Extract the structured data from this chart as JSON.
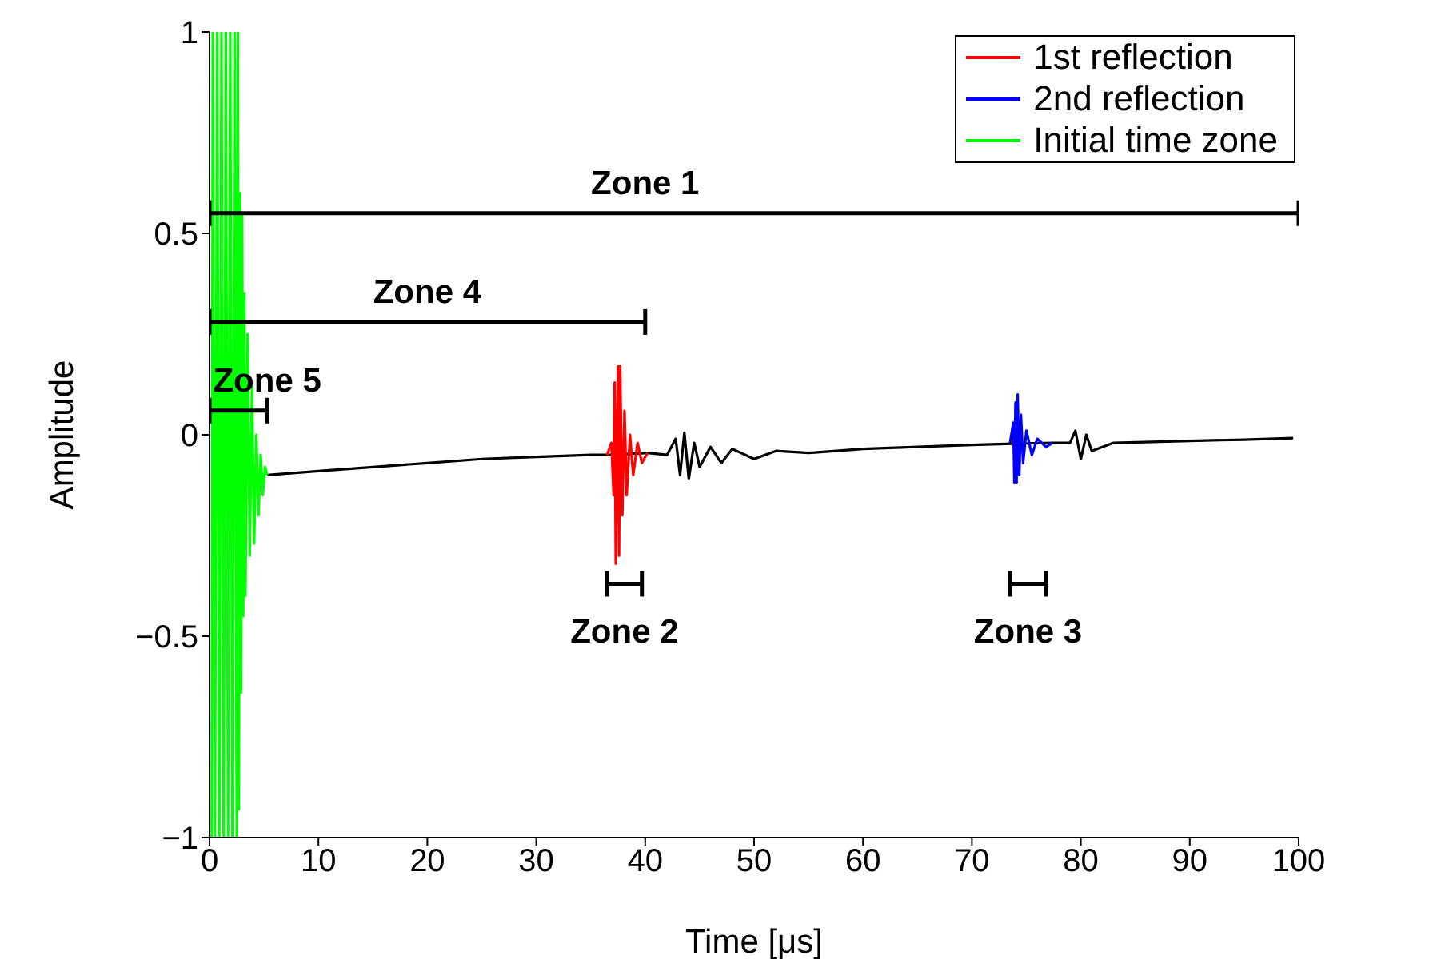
{
  "chart_data": {
    "type": "line",
    "xlabel": "Time [μs]",
    "ylabel": "Amplitude",
    "xlim": [
      0,
      100
    ],
    "xticks": [
      0,
      10,
      20,
      30,
      40,
      50,
      60,
      70,
      80,
      90,
      100
    ],
    "ylim": [
      -1,
      1
    ],
    "yticks": [
      -1,
      -0.5,
      0,
      0.5,
      1
    ],
    "grid": false,
    "legend": "top right",
    "marker": "none",
    "line_style": "solid",
    "series": [
      {
        "color": "#000000",
        "x": [
          5.3,
          10,
          15,
          20,
          25,
          30,
          35,
          36.9,
          40.2,
          42,
          42.8,
          43.2,
          43.6,
          44,
          44.5,
          45,
          46,
          47,
          48,
          50,
          52,
          55,
          60,
          65,
          70,
          73.7,
          77.4,
          79,
          79.5,
          80,
          80.5,
          81,
          83,
          90,
          95,
          99.5
        ],
        "values": [
          -0.1,
          -0.09,
          -0.08,
          -0.07,
          -0.06,
          -0.055,
          -0.05,
          -0.05,
          -0.045,
          -0.05,
          -0.01,
          -0.1,
          0.005,
          -0.11,
          -0.02,
          -0.08,
          -0.03,
          -0.07,
          -0.035,
          -0.06,
          -0.04,
          -0.045,
          -0.035,
          -0.03,
          -0.025,
          -0.022,
          -0.02,
          -0.02,
          0.01,
          -0.06,
          0,
          -0.04,
          -0.02,
          -0.015,
          -0.012,
          -0.008
        ]
      },
      {
        "name": "1st reflection",
        "color": "#ff0000",
        "x": [
          36.5,
          36.9,
          37.1,
          37.2,
          37.3,
          37.5,
          37.6,
          37.7,
          37.9,
          38.1,
          38.3,
          38.6,
          38.9,
          39.3,
          39.7,
          40.2
        ],
        "values": [
          -0.05,
          -0.02,
          -0.15,
          0.13,
          -0.32,
          0.17,
          -0.3,
          0.17,
          -0.2,
          0.06,
          -0.15,
          0,
          -0.1,
          -0.02,
          -0.07,
          -0.045
        ]
      },
      {
        "name": "2nd reflection",
        "color": "#0000ff",
        "x": [
          73.5,
          73.8,
          73.9,
          74,
          74.1,
          74.2,
          74.35,
          74.5,
          74.7,
          75,
          75.5,
          76,
          76.8,
          77.4
        ],
        "values": [
          -0.02,
          0.03,
          -0.12,
          0.08,
          -0.12,
          0.1,
          -0.1,
          0.05,
          -0.07,
          0.01,
          -0.05,
          -0.01,
          -0.03,
          -0.02
        ]
      },
      {
        "name": "Initial time zone",
        "color": "#00ff00",
        "x": [
          0.2,
          0.3,
          0.5,
          0.7,
          0.9,
          1.1,
          1.3,
          1.5,
          1.7,
          1.9,
          2.1,
          2.3,
          2.5,
          2.6,
          2.7,
          2.8,
          2.9,
          3,
          3.1,
          3.2,
          3.3,
          3.5,
          3.7,
          3.9,
          4.1,
          4.3,
          4.5,
          4.7,
          4.9,
          5.1,
          5.3
        ],
        "values": [
          -1,
          1,
          -1,
          1,
          -1,
          1,
          -1,
          1,
          -1,
          1,
          -1,
          1,
          -1,
          1,
          -0.93,
          0.6,
          -0.64,
          0.55,
          -0.45,
          0.35,
          -0.4,
          0.25,
          -0.3,
          0.12,
          -0.27,
          0,
          -0.2,
          -0.05,
          -0.15,
          -0.08,
          -0.1
        ]
      },
      {
        "color": "#000000",
        "x": [
          0,
          100
        ],
        "values": [
          0.55,
          0.55
        ]
      },
      {
        "color": "#000000",
        "x": [
          0,
          40
        ],
        "values": [
          0.28,
          0.28
        ]
      },
      {
        "color": "#000000",
        "x": [
          0,
          5.3
        ],
        "values": [
          0.06,
          0.06
        ]
      },
      {
        "color": "#000000",
        "x": [
          36.5,
          39.7
        ],
        "values": [
          -0.37,
          -0.37
        ]
      },
      {
        "color": "#000000",
        "x": [
          73.5,
          76.8
        ],
        "values": [
          -0.37,
          -0.37
        ]
      }
    ],
    "annotations": [
      {
        "text": "Zone 1",
        "x": 40,
        "y": 0.55
      },
      {
        "text": "Zone 4",
        "x": 20,
        "y": 0.28
      },
      {
        "text": "Zone 5",
        "x": 5.3,
        "y": 0.06
      },
      {
        "text": "Zone 2",
        "x": 38.1,
        "y": -0.37
      },
      {
        "text": "Zone 3",
        "x": 75.15,
        "y": -0.37
      }
    ]
  }
}
